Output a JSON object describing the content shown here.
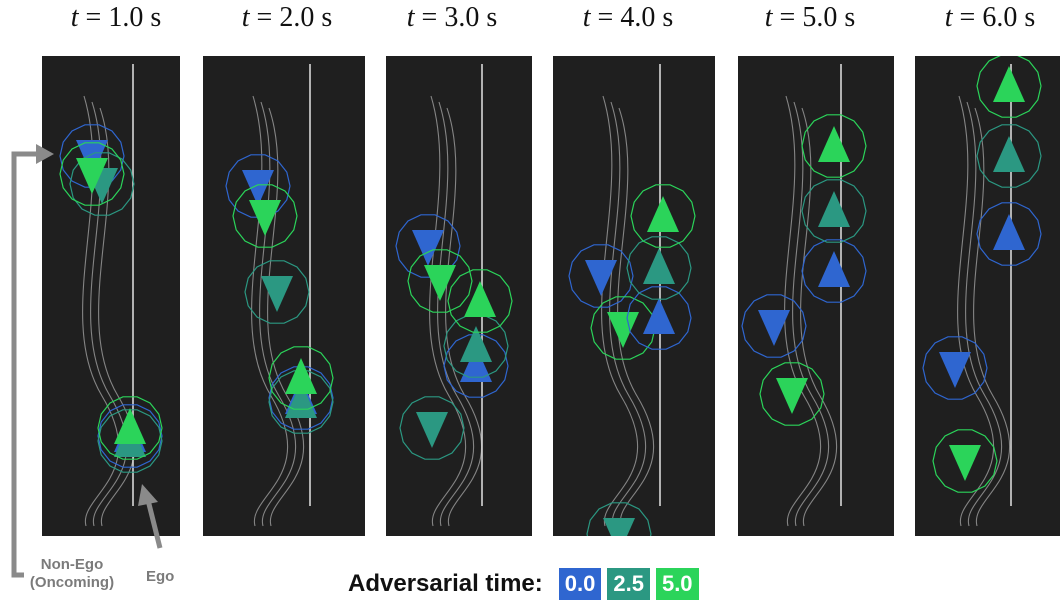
{
  "colors": {
    "t0": "#2f66d0",
    "t25": "#2b9882",
    "t5": "#2bd45a",
    "panel": "#1f1f1f",
    "lane": "#d8d8d8",
    "arrow": "#8a8a8a"
  },
  "labels": {
    "non_ego_line1": "Non-Ego",
    "non_ego_line2": "(Oncoming)",
    "ego": "Ego"
  },
  "legend": {
    "title": "Adversarial time:",
    "items": [
      {
        "label": "0.0",
        "key": "t0"
      },
      {
        "label": "2.5",
        "key": "t25"
      },
      {
        "label": "5.0",
        "key": "t5"
      }
    ]
  },
  "panels": [
    {
      "time_label": "t = 1.0 s",
      "time_var": "t",
      "time_value": "= 1.0 s",
      "agents": [
        {
          "role": "non-ego",
          "adv": "t0",
          "dir": "down",
          "x": 50,
          "y": 100
        },
        {
          "role": "non-ego",
          "adv": "t25",
          "dir": "down",
          "x": 60,
          "y": 128
        },
        {
          "role": "non-ego",
          "adv": "t5",
          "dir": "down",
          "x": 50,
          "y": 118
        },
        {
          "role": "ego",
          "adv": "t0",
          "dir": "up",
          "x": 88,
          "y": 380
        },
        {
          "role": "ego",
          "adv": "t25",
          "dir": "up",
          "x": 88,
          "y": 385
        },
        {
          "role": "ego",
          "adv": "t5",
          "dir": "up",
          "x": 88,
          "y": 372
        }
      ]
    },
    {
      "time_label": "t = 2.0 s",
      "time_var": "t",
      "time_value": "= 2.0 s",
      "agents": [
        {
          "role": "non-ego",
          "adv": "t0",
          "dir": "down",
          "x": 55,
          "y": 130
        },
        {
          "role": "non-ego",
          "adv": "t5",
          "dir": "down",
          "x": 62,
          "y": 160
        },
        {
          "role": "non-ego",
          "adv": "t25",
          "dir": "down",
          "x": 74,
          "y": 236
        },
        {
          "role": "ego",
          "adv": "t0",
          "dir": "up",
          "x": 98,
          "y": 342
        },
        {
          "role": "ego",
          "adv": "t25",
          "dir": "up",
          "x": 98,
          "y": 346
        },
        {
          "role": "ego",
          "adv": "t5",
          "dir": "up",
          "x": 98,
          "y": 322
        }
      ]
    },
    {
      "time_label": "t = 3.0 s",
      "time_var": "t",
      "time_value": "= 3.0 s",
      "agents": [
        {
          "role": "non-ego",
          "adv": "t0",
          "dir": "down",
          "x": 42,
          "y": 190
        },
        {
          "role": "non-ego",
          "adv": "t5",
          "dir": "down",
          "x": 54,
          "y": 225
        },
        {
          "role": "non-ego",
          "adv": "t25",
          "dir": "down",
          "x": 46,
          "y": 372
        },
        {
          "role": "ego",
          "adv": "t0",
          "dir": "up",
          "x": 90,
          "y": 310
        },
        {
          "role": "ego",
          "adv": "t25",
          "dir": "up",
          "x": 90,
          "y": 290
        },
        {
          "role": "ego",
          "adv": "t5",
          "dir": "up",
          "x": 94,
          "y": 245
        }
      ]
    },
    {
      "time_label": "t = 4.0 s",
      "time_var": "t",
      "time_value": "= 4.0 s",
      "agents": [
        {
          "role": "non-ego",
          "adv": "t0",
          "dir": "down",
          "x": 48,
          "y": 220
        },
        {
          "role": "non-ego",
          "adv": "t5",
          "dir": "down",
          "x": 70,
          "y": 272
        },
        {
          "role": "non-ego",
          "adv": "t25",
          "dir": "down",
          "x": 66,
          "y": 478
        },
        {
          "role": "ego",
          "adv": "t0",
          "dir": "up",
          "x": 106,
          "y": 262
        },
        {
          "role": "ego",
          "adv": "t25",
          "dir": "up",
          "x": 106,
          "y": 212
        },
        {
          "role": "ego",
          "adv": "t5",
          "dir": "up",
          "x": 110,
          "y": 160
        }
      ]
    },
    {
      "time_label": "t = 5.0 s",
      "time_var": "t",
      "time_value": "= 5.0 s",
      "agents": [
        {
          "role": "non-ego",
          "adv": "t0",
          "dir": "down",
          "x": 36,
          "y": 270
        },
        {
          "role": "non-ego",
          "adv": "t5",
          "dir": "down",
          "x": 54,
          "y": 338
        },
        {
          "role": "ego",
          "adv": "t0",
          "dir": "up",
          "x": 96,
          "y": 215
        },
        {
          "role": "ego",
          "adv": "t25",
          "dir": "up",
          "x": 96,
          "y": 155
        },
        {
          "role": "ego",
          "adv": "t5",
          "dir": "up",
          "x": 96,
          "y": 90
        }
      ]
    },
    {
      "time_label": "t = 6.0 s",
      "time_var": "t",
      "time_value": "= 6.0 s",
      "agents": [
        {
          "role": "non-ego",
          "adv": "t0",
          "dir": "down",
          "x": 40,
          "y": 312
        },
        {
          "role": "non-ego",
          "adv": "t5",
          "dir": "down",
          "x": 50,
          "y": 405
        },
        {
          "role": "ego",
          "adv": "t0",
          "dir": "up",
          "x": 94,
          "y": 178
        },
        {
          "role": "ego",
          "adv": "t25",
          "dir": "up",
          "x": 94,
          "y": 100
        },
        {
          "role": "ego",
          "adv": "t5",
          "dir": "up",
          "x": 94,
          "y": 30
        }
      ]
    }
  ]
}
